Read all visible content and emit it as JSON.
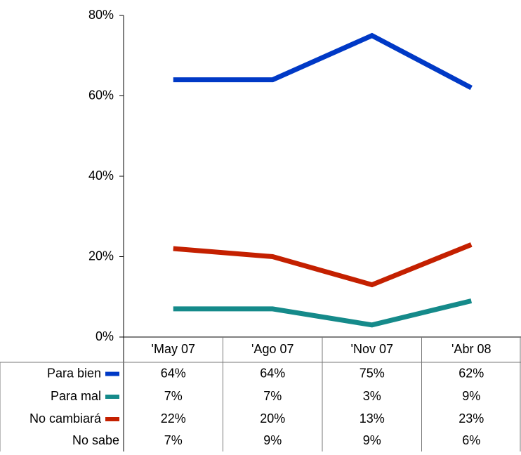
{
  "chart_data": {
    "type": "line",
    "categories": [
      "'May 07",
      "'Ago 07",
      "'Nov 07",
      "'Abr 08"
    ],
    "series": [
      {
        "name": "Para bien",
        "color": "#0039c6",
        "values": [
          64,
          64,
          75,
          62
        ],
        "value_labels": [
          "64%",
          "64%",
          "75%",
          "62%"
        ]
      },
      {
        "name": "Para mal",
        "color": "#158a8a",
        "values": [
          7,
          7,
          3,
          9
        ],
        "value_labels": [
          "7%",
          "7%",
          "3%",
          "9%"
        ]
      },
      {
        "name": "No cambiará",
        "color": "#c42000",
        "values": [
          22,
          20,
          13,
          23
        ],
        "value_labels": [
          "22%",
          "20%",
          "13%",
          "23%"
        ]
      },
      {
        "name": "No sabe",
        "values": [
          7,
          9,
          9,
          6
        ],
        "value_labels": [
          "7%",
          "9%",
          "9%",
          "6%"
        ]
      }
    ],
    "ylim": [
      0,
      80
    ],
    "yticks": [
      {
        "value": 0,
        "label": "0%"
      },
      {
        "value": 20,
        "label": "20%"
      },
      {
        "value": 40,
        "label": "40%"
      },
      {
        "value": 60,
        "label": "60%"
      },
      {
        "value": 80,
        "label": "80%"
      }
    ]
  }
}
